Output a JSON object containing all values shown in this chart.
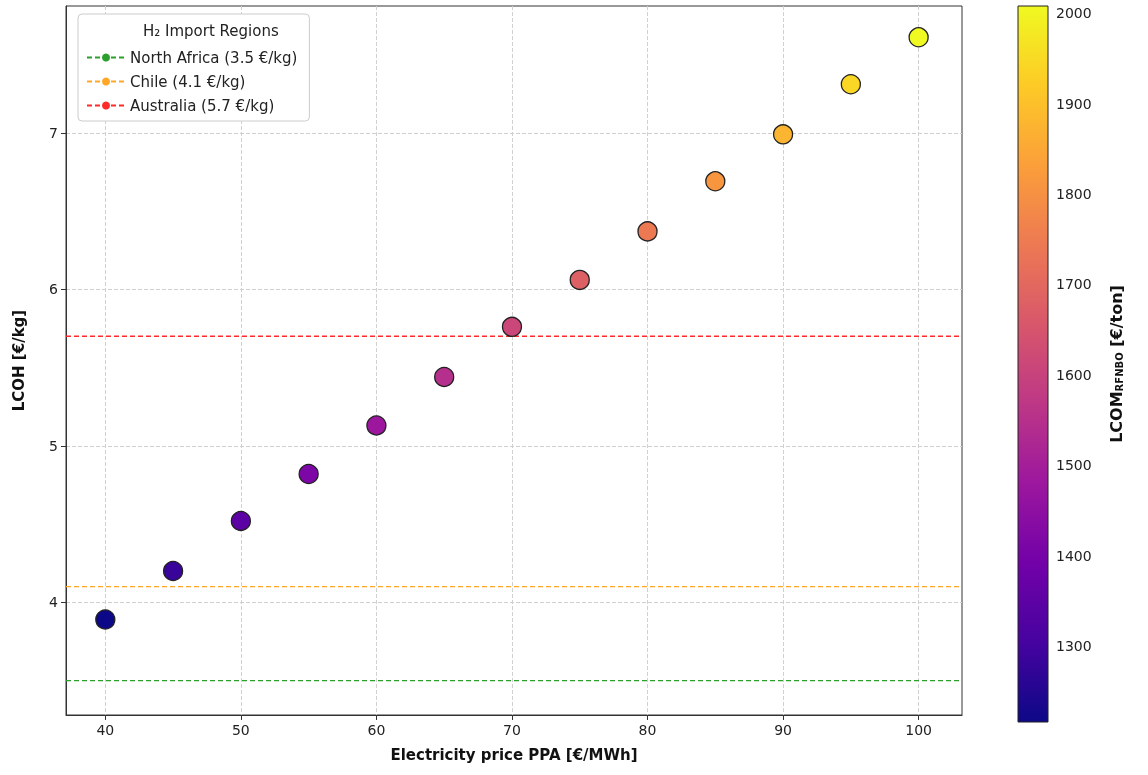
{
  "chart_data": {
    "type": "scatter",
    "xlabel": "Electricity price PPA [€/MWh]",
    "ylabel": "LCOH [€/kg]",
    "clabel": "LCOM$_{RFNBO}$ [€/ton]",
    "legend_title": "H₂ Import Regions",
    "x": [
      40,
      45,
      50,
      55,
      60,
      65,
      70,
      75,
      80,
      85,
      90,
      95,
      100
    ],
    "values": [
      3.89,
      4.2,
      4.52,
      4.82,
      5.13,
      5.44,
      5.76,
      6.06,
      6.37,
      6.69,
      6.99,
      7.31,
      7.61
    ],
    "cvalues": [
      1216,
      1282,
      1348,
      1414,
      1480,
      1546,
      1612,
      1678,
      1744,
      1810,
      1876,
      1942,
      2008
    ],
    "clim": [
      1216,
      2008
    ],
    "cticks": [
      1300,
      1400,
      1500,
      1600,
      1700,
      1800,
      1900,
      2000
    ],
    "xlim": [
      37.1,
      103.2
    ],
    "xticks": [
      40,
      50,
      60,
      70,
      80,
      90,
      100
    ],
    "ylim": [
      3.28,
      7.81
    ],
    "yticks": [
      4,
      5,
      6,
      7
    ],
    "ref_lines": [
      {
        "axis": "y",
        "value": 3.5,
        "label": "North Africa (3.5 €/kg)",
        "color": "#2ca02c",
        "line_style": "dashed"
      },
      {
        "axis": "y",
        "value": 4.1,
        "label": "Chile (4.1 €/kg)",
        "color": "#ffa726",
        "line_style": "dashed"
      },
      {
        "axis": "y",
        "value": 5.7,
        "label": "Australia (5.7 €/kg)",
        "color": "#ff2a2a",
        "line_style": "dashed"
      }
    ],
    "grid": true,
    "legend": "top left",
    "marker": "circle"
  }
}
